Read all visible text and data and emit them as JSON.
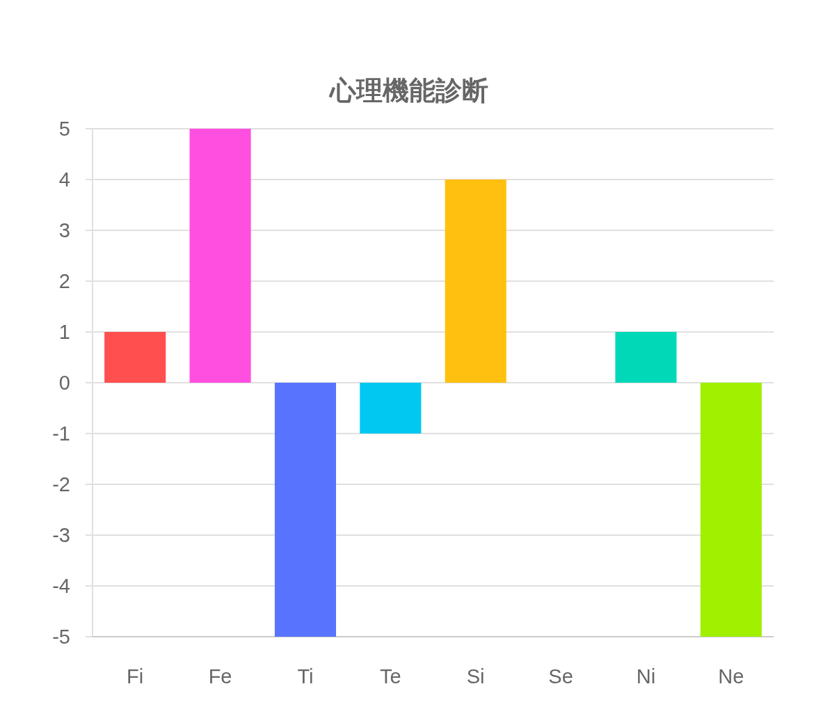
{
  "chart_data": {
    "type": "bar",
    "title": "心理機能診断",
    "categories": [
      "Fi",
      "Fe",
      "Ti",
      "Te",
      "Si",
      "Se",
      "Ni",
      "Ne"
    ],
    "values": [
      1,
      5,
      -5,
      -1,
      4,
      0,
      1,
      -5
    ],
    "colors": [
      "#ff4f4f",
      "#ff4fe0",
      "#5874ff",
      "#00c8f0",
      "#ffc00f",
      "#ff8a3c",
      "#00d8b8",
      "#a0f000"
    ],
    "ylim": [
      -5,
      5
    ],
    "yticks": [
      -5,
      -4,
      -3,
      -2,
      -1,
      0,
      1,
      2,
      3,
      4,
      5
    ],
    "grid": "y"
  }
}
